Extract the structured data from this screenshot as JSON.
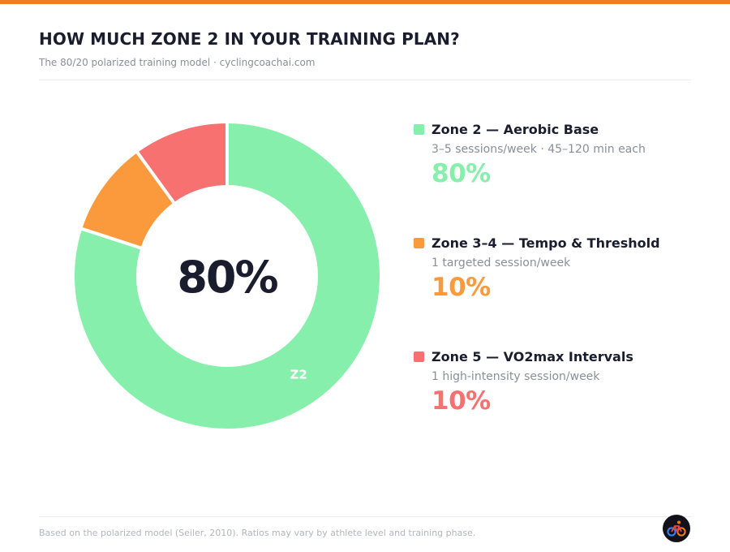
{
  "title": "HOW MUCH ZONE 2 IN YOUR TRAINING PLAN?",
  "subtitle": "The 80/20 polarized training model · cyclingcoachai.com",
  "colors": {
    "accent": "#f47c20",
    "zone2": "#86efac",
    "zone34": "#fb9a3c",
    "zone5": "#f87171",
    "title": "#1a1d2e",
    "muted": "#8a8f98",
    "logo_bg": "#12131a"
  },
  "chart_data": {
    "type": "pie",
    "style": "donut",
    "center_label": "80%",
    "slices": [
      {
        "key": "zone2",
        "label": "Zone 2 — Aerobic Base",
        "short_label": "Z2",
        "description": "3–5 sessions/week · 45–120 min each",
        "value": 80,
        "value_label": "80%",
        "color": "#86efac"
      },
      {
        "key": "zone34",
        "label": "Zone 3–4 — Tempo & Threshold",
        "short_label": "",
        "description": "1 targeted session/week",
        "value": 10,
        "value_label": "10%",
        "color": "#fb9a3c"
      },
      {
        "key": "zone5",
        "label": "Zone 5 — VO2max Intervals",
        "short_label": "",
        "description": "1 high-intensity session/week",
        "value": 10,
        "value_label": "10%",
        "color": "#f87171"
      }
    ],
    "legend_position": "right"
  },
  "footnote": "Based on the polarized model (Seiler, 2010). Ratios may vary by athlete level and training phase.",
  "brand": {
    "icon": "cyclist-icon"
  }
}
